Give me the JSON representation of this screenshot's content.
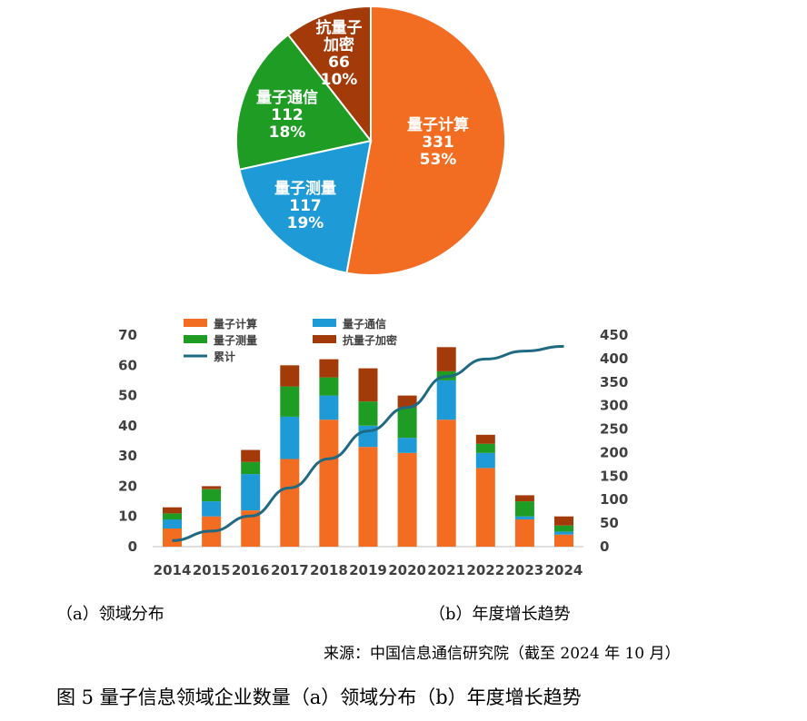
{
  "chart_data": [
    {
      "type": "pie",
      "slices": [
        {
          "name": "量子计算",
          "value": 331,
          "percent": "53%",
          "color": "#f26c22"
        },
        {
          "name": "量子测量",
          "value": 117,
          "percent": "19%",
          "color": "#1e9ad6"
        },
        {
          "name": "量子通信",
          "value": 112,
          "percent": "18%",
          "color": "#1e9c23"
        },
        {
          "name": "抗量子加密",
          "value": 66,
          "percent": "10%",
          "color": "#a33a0a"
        }
      ],
      "labels": [
        {
          "lines": [
            "量子计算",
            "331",
            "53%"
          ]
        },
        {
          "lines": [
            "量子测量",
            "117",
            "19%"
          ]
        },
        {
          "lines": [
            "量子通信",
            "112",
            "18%"
          ]
        },
        {
          "lines": [
            "抗量子",
            "加密",
            "66",
            "10%"
          ]
        }
      ]
    },
    {
      "type": "bar",
      "stacked": true,
      "categories": [
        "2014",
        "2015",
        "2016",
        "2017",
        "2018",
        "2019",
        "2020",
        "2021",
        "2022",
        "2023",
        "2024"
      ],
      "series": [
        {
          "name": "量子计算",
          "color": "#f26c22",
          "values": [
            6,
            10,
            12,
            29,
            42,
            33,
            31,
            42,
            26,
            9,
            4
          ]
        },
        {
          "name": "量子通信",
          "color": "#1e9ad6",
          "values": [
            3,
            5,
            12,
            14,
            8,
            7,
            5,
            13,
            5,
            1,
            1
          ]
        },
        {
          "name": "量子测量",
          "color": "#1e9c23",
          "values": [
            2,
            4,
            4,
            10,
            6,
            8,
            10,
            3,
            3,
            5,
            2
          ]
        },
        {
          "name": "抗量子加密",
          "color": "#a33a0a",
          "values": [
            2,
            1,
            4,
            7,
            6,
            11,
            4,
            8,
            3,
            2,
            3
          ]
        }
      ],
      "line": {
        "name": "累计",
        "color": "#1f6a82",
        "values": [
          13,
          33,
          65,
          125,
          187,
          246,
          296,
          362,
          399,
          416,
          426
        ]
      },
      "ylim_left": [
        0,
        70
      ],
      "yticks_left": [
        0,
        10,
        20,
        30,
        40,
        50,
        60,
        70
      ],
      "ylim_right": [
        0,
        450
      ],
      "yticks_right": [
        0,
        50,
        100,
        150,
        200,
        250,
        300,
        350,
        400,
        450
      ],
      "legend_placement": "top-left",
      "grid": false
    }
  ],
  "captions": {
    "sub_a": "（a）领域分布",
    "sub_b": "（b）年度增长趋势",
    "source": "来源：中国信息通信研究院（截至 2024 年 10 月）",
    "figure": "图 5 量子信息领域企业数量（a）领域分布（b）年度增长趋势"
  }
}
